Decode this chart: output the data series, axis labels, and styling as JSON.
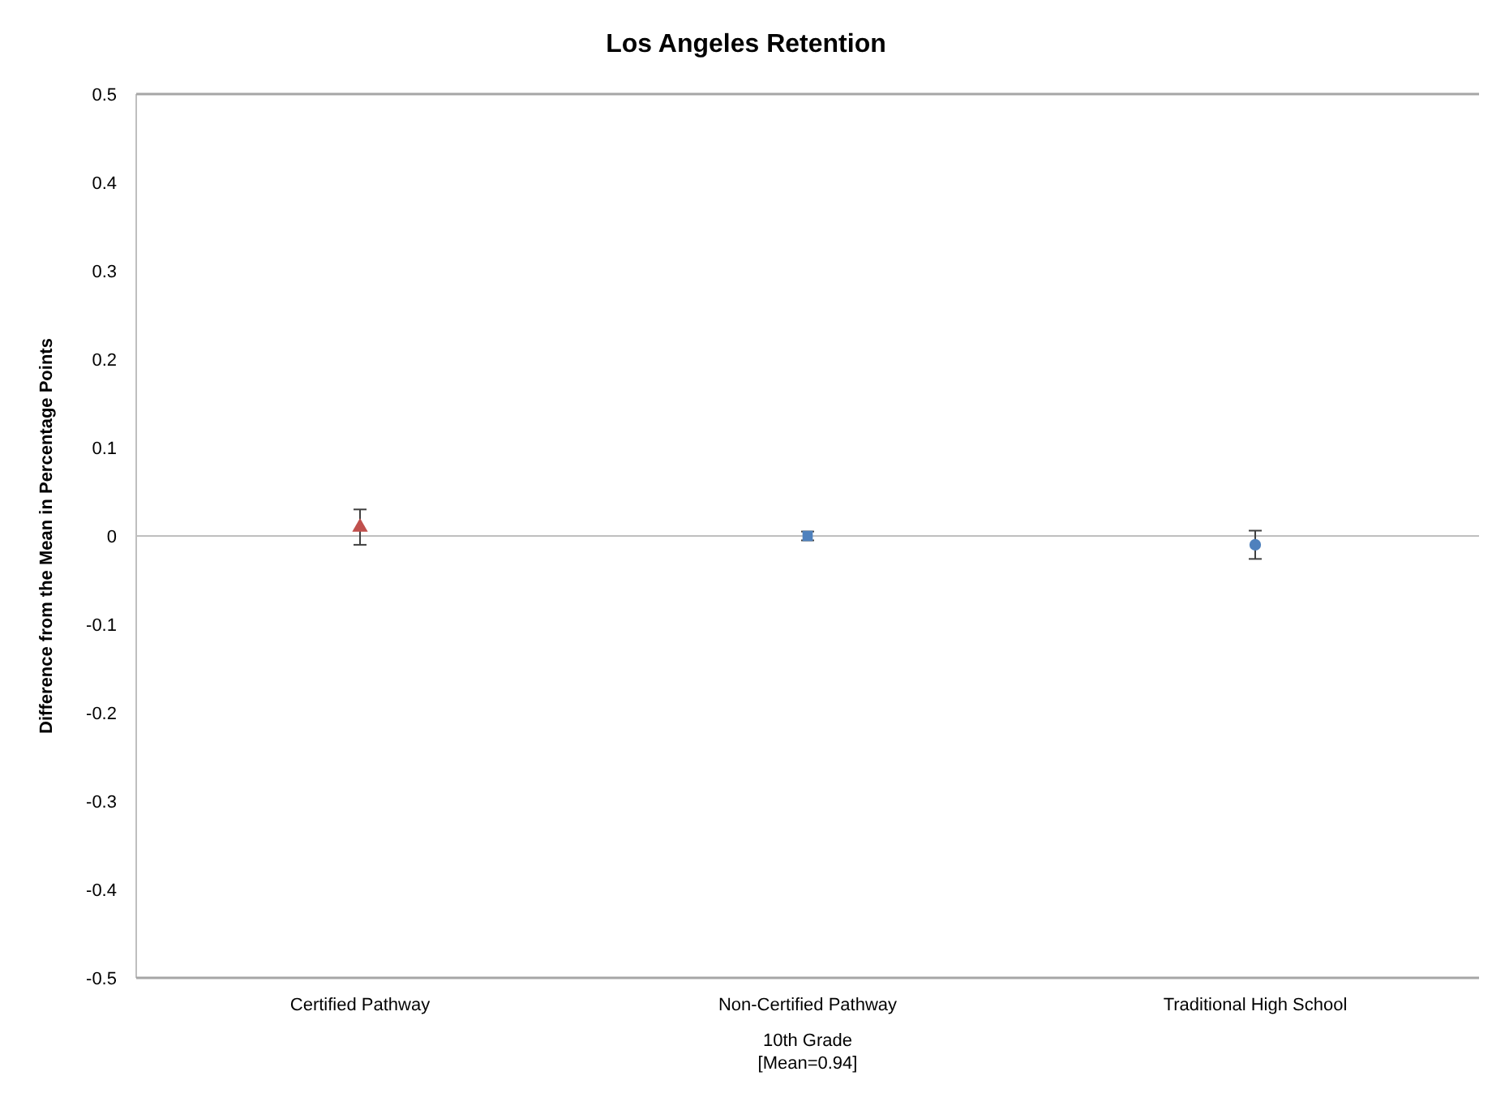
{
  "chart_data": {
    "type": "scatter",
    "title": "Los Angeles Retention",
    "xlabel": "10th Grade",
    "ylabel": "Difference from the Mean in Percentage Points",
    "annotations": [
      "[Mean=0.94]"
    ],
    "categories": [
      "Certified Pathway",
      "Non-Certified Pathway",
      "Traditional High School"
    ],
    "ylim": [
      -0.5,
      0.5
    ],
    "yticks": [
      -0.5,
      -0.4,
      -0.3,
      -0.2,
      -0.1,
      0,
      0.1,
      0.2,
      0.3,
      0.4,
      0.5
    ],
    "ref_lines": [
      {
        "axis": "y",
        "value": 0,
        "color": "#bfbfbf"
      }
    ],
    "series": [
      {
        "x": [
          "Certified Pathway"
        ],
        "values": [
          0.01
        ],
        "errors": [
          0.02
        ],
        "color": "#c0504d",
        "marker": "triangle"
      },
      {
        "x": [
          "Non-Certified Pathway"
        ],
        "values": [
          0
        ],
        "errors": [
          0.005
        ],
        "color": "#4f81bd",
        "marker": "square"
      },
      {
        "x": [
          "Traditional High School"
        ],
        "values": [
          -0.01
        ],
        "errors": [
          0.016
        ],
        "color": "#4f81bd",
        "marker": "circle"
      }
    ]
  }
}
